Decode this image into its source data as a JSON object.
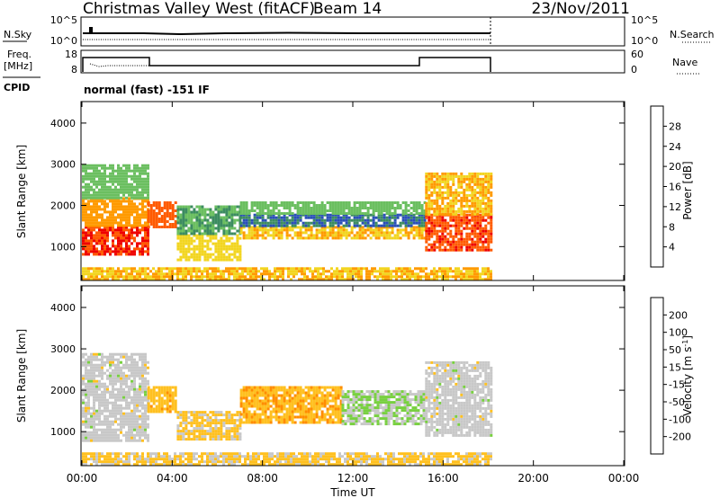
{
  "header": {
    "title": "Christmas Valley West (fitACF)",
    "beam": "Beam 14",
    "date": "23/Nov/2011"
  },
  "top_panels": {
    "nsky": {
      "label": "N.Sky",
      "ticks": [
        "10^5",
        "10^0"
      ],
      "right_ticks": [
        "10^5",
        "10^0"
      ],
      "right_label": "N.Search"
    },
    "freq": {
      "label_line1": "Freq.",
      "label_line2": "[MHz]",
      "ticks": [
        "18",
        "8"
      ],
      "right_ticks": [
        "60",
        "0"
      ],
      "right_label": "Nave"
    },
    "cpid": {
      "label": "CPID",
      "text": "normal (fast) -151 IF"
    }
  },
  "colors": {
    "power": [
      "#0000ee",
      "#2a4fb8",
      "#3c8c60",
      "#6bbf60",
      "#f2d520",
      "#ff9a00",
      "#ff5a00",
      "#ee0000"
    ],
    "velocity": [
      "#e60000",
      "#ff5000",
      "#ff8c00",
      "#ffc020",
      "#c8c8c8",
      "#78d040",
      "#3c9a50",
      "#2a5aa0",
      "#0000ee"
    ]
  },
  "chart_data": [
    {
      "type": "heatmap",
      "name": "power",
      "ylabel": "Slant Range [km]",
      "y_ticks": [
        "1000",
        "2000",
        "3000",
        "4000"
      ],
      "ylim": [
        200,
        4500
      ],
      "xlim": [
        0,
        24
      ],
      "colorbar": {
        "label": "Power [dB]",
        "ticks": [
          "4",
          "8",
          "12",
          "16",
          "20",
          "24",
          "28"
        ],
        "range": [
          0,
          32
        ]
      },
      "regions": [
        {
          "t": [
            0.0,
            2.9
          ],
          "r": [
            800,
            1500
          ],
          "value": 28
        },
        {
          "t": [
            0.0,
            2.9
          ],
          "r": [
            1500,
            2200
          ],
          "value": 22
        },
        {
          "t": [
            0.0,
            2.9
          ],
          "r": [
            2200,
            3000
          ],
          "value": 14
        },
        {
          "t": [
            2.9,
            4.2
          ],
          "r": [
            1500,
            2100
          ],
          "value": 26
        },
        {
          "t": [
            4.2,
            7.0
          ],
          "r": [
            700,
            1300
          ],
          "value": 18
        },
        {
          "t": [
            4.2,
            7.0
          ],
          "r": [
            1300,
            2000
          ],
          "value": 12
        },
        {
          "t": [
            7.0,
            15.2
          ],
          "r": [
            1200,
            1500
          ],
          "value": 20
        },
        {
          "t": [
            7.0,
            15.2
          ],
          "r": [
            1500,
            1800
          ],
          "value": 8
        },
        {
          "t": [
            7.0,
            15.2
          ],
          "r": [
            1800,
            2100
          ],
          "value": 14
        },
        {
          "t": [
            15.2,
            18.1
          ],
          "r": [
            900,
            1800
          ],
          "value": 27
        },
        {
          "t": [
            15.2,
            18.1
          ],
          "r": [
            1800,
            2800
          ],
          "value": 20
        },
        {
          "t": [
            0.0,
            18.1
          ],
          "r": [
            200,
            500
          ],
          "value": 20
        }
      ]
    },
    {
      "type": "heatmap",
      "name": "velocity",
      "ylabel": "Slant Range [km]",
      "xlabel": "Time UT",
      "x_ticks": [
        "00:00",
        "04:00",
        "08:00",
        "12:00",
        "16:00",
        "20:00",
        "00:00"
      ],
      "y_ticks": [
        "1000",
        "2000",
        "3000",
        "4000"
      ],
      "ylim": [
        200,
        4500
      ],
      "xlim": [
        0,
        24
      ],
      "colorbar": {
        "label": "Velocity [m s",
        "label_sup": "-1",
        "label_end": "]",
        "ticks": [
          "200",
          "100",
          "50",
          "15",
          "-15",
          "-50",
          "-100",
          "-200"
        ],
        "range": [
          -250,
          250
        ]
      },
      "regions": [
        {
          "t": [
            0.0,
            2.9
          ],
          "r": [
            800,
            2900
          ],
          "value": 0
        },
        {
          "t": [
            2.9,
            4.2
          ],
          "r": [
            1500,
            2100
          ],
          "value": -60
        },
        {
          "t": [
            4.2,
            7.0
          ],
          "r": [
            800,
            1500
          ],
          "value": -40
        },
        {
          "t": [
            7.0,
            11.5
          ],
          "r": [
            1200,
            2100
          ],
          "value": -70
        },
        {
          "t": [
            11.5,
            15.2
          ],
          "r": [
            1200,
            2000
          ],
          "value": 30
        },
        {
          "t": [
            15.2,
            18.1
          ],
          "r": [
            900,
            2700
          ],
          "value": 0
        },
        {
          "t": [
            0.0,
            18.1
          ],
          "r": [
            200,
            500
          ],
          "value": -40
        }
      ]
    }
  ]
}
